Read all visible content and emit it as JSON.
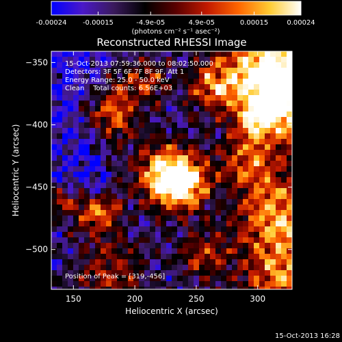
{
  "chart_data": {
    "type": "heatmap",
    "title": "Reconstructed RHESSI Image",
    "xlabel": "Heliocentric X (arcsec)",
    "ylabel": "Heliocentric Y (arcsec)",
    "xlim": [
      132,
      328
    ],
    "ylim": [
      -532,
      -341
    ],
    "x_ticks": [
      150,
      200,
      250,
      300
    ],
    "y_ticks": [
      -350,
      -400,
      -450,
      -500
    ],
    "colorbar": {
      "min": -0.00024,
      "max": 0.00024,
      "ticks": [
        -0.00024,
        -0.00015,
        -4.9e-05,
        4.9e-05,
        0.00015,
        0.00024
      ],
      "tick_labels": [
        "-0.00024",
        "-0.00015",
        "-4.9e-05",
        "4.9e-05",
        "0.00015",
        "0.00024"
      ],
      "units_label": "(photons cm⁻² s⁻¹ asec⁻²)",
      "colors": [
        "#0000ff",
        "#4a18c8",
        "#3a1a5c",
        "#000000",
        "#5a0000",
        "#c21a00",
        "#ff6600",
        "#ffcc33",
        "#ffffff"
      ]
    },
    "annotations": [
      "15-Oct-2013 07:59:36.000 to 08:02:50.000",
      "Detectors: 3F 5F 6F 7F 8F 9F, Att 1",
      "Energy Range: 25.0 - 50.0 keV",
      "Clean    Total counts: 6.56E+03"
    ],
    "peak_label": "Position of Peak = [319,-456]",
    "peak": [
      319,
      -456
    ],
    "grid": false
  },
  "footer": {
    "timestamp": "15-Oct-2013 16:28"
  }
}
